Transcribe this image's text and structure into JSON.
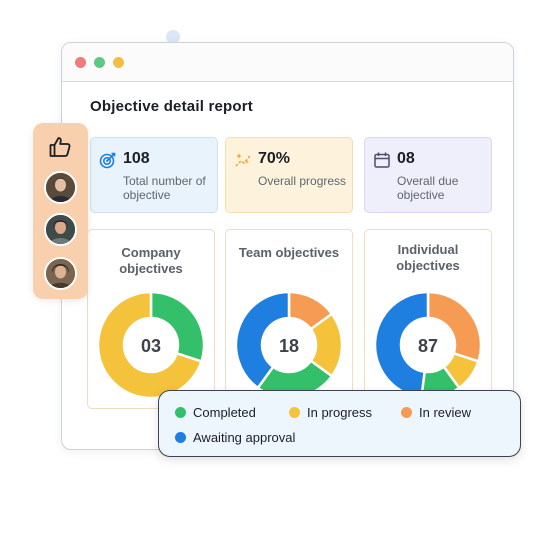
{
  "colors": {
    "completed": "#34c06b",
    "in_progress": "#f5c23c",
    "in_review": "#f59b53",
    "awaiting_approval": "#1f7fe0"
  },
  "window": {
    "title": "Objective detail report"
  },
  "stats": [
    {
      "icon": "target-icon",
      "value": "108",
      "label": "Total number of objective"
    },
    {
      "icon": "progress-sparkle-icon",
      "value": "70%",
      "label": "Overall progress"
    },
    {
      "icon": "calendar-icon",
      "value": "08",
      "label": "Overall due objective"
    }
  ],
  "cards": [
    {
      "title": "Company objectives",
      "center_value": "03"
    },
    {
      "title": "Team objectives",
      "center_value": "18"
    },
    {
      "title": "Individual objectives",
      "center_value": "87"
    }
  ],
  "chart_data": [
    {
      "type": "pie",
      "title": "Company objectives",
      "categories": [
        "Completed",
        "In progress"
      ],
      "values": [
        30,
        70
      ]
    },
    {
      "type": "pie",
      "title": "Team objectives",
      "categories": [
        "In review",
        "In progress",
        "Completed",
        "Awaiting approval"
      ],
      "values": [
        15,
        20,
        25,
        40
      ]
    },
    {
      "type": "pie",
      "title": "Individual objectives",
      "categories": [
        "In review",
        "In progress",
        "Completed",
        "Awaiting approval"
      ],
      "values": [
        30,
        10,
        12,
        48
      ]
    }
  ],
  "legend": {
    "items": [
      {
        "label": "Completed",
        "key": "completed"
      },
      {
        "label": "In progress",
        "key": "in_progress"
      },
      {
        "label": "In review",
        "key": "in_review"
      },
      {
        "label": "Awaiting approval",
        "key": "awaiting_approval"
      }
    ]
  },
  "side_panel": {
    "icon": "thumbs-up-icon",
    "avatars": [
      "avatar",
      "avatar",
      "avatar"
    ]
  }
}
